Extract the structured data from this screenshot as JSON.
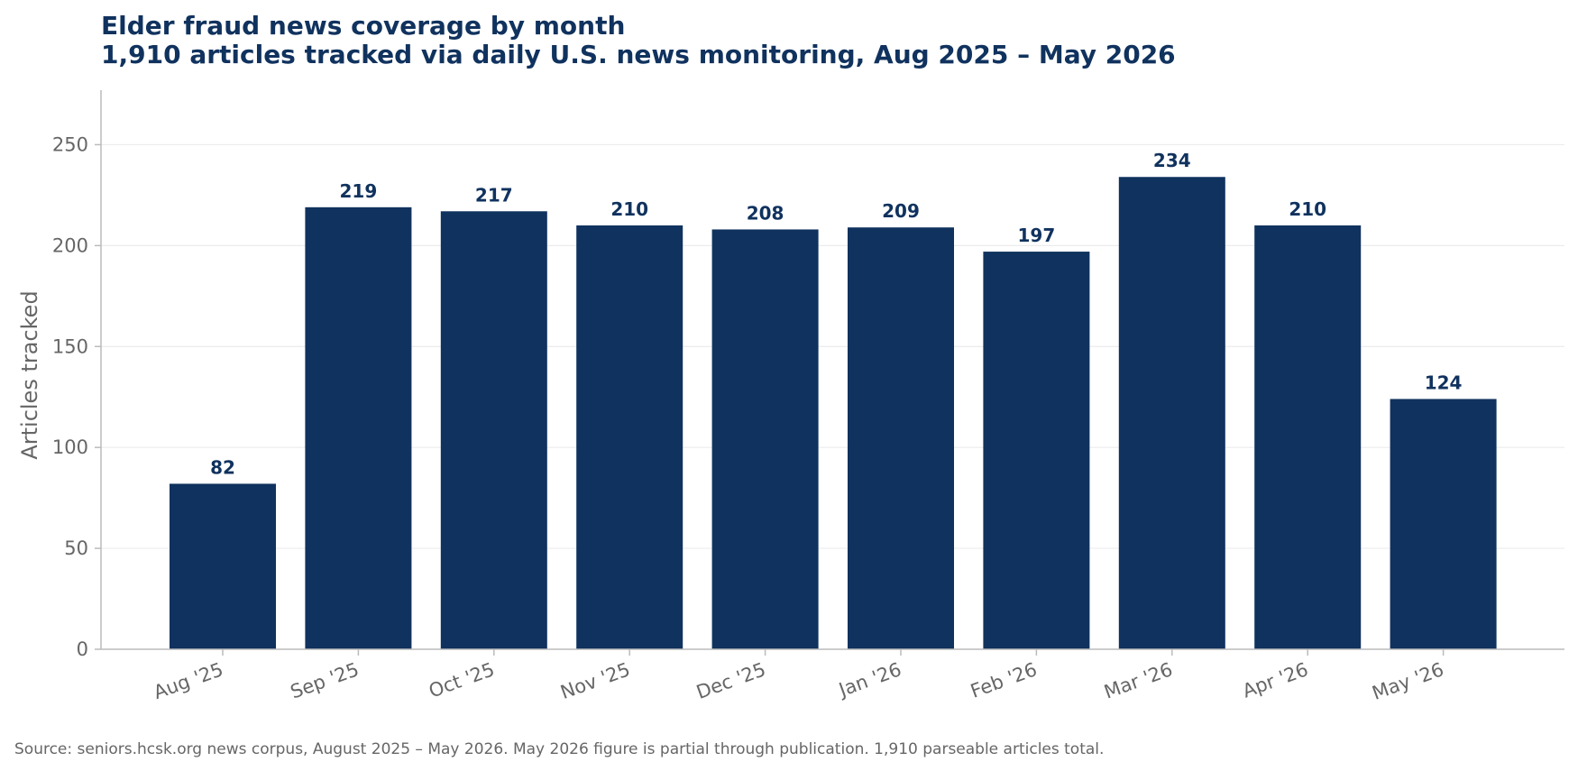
{
  "chart_data": {
    "type": "bar",
    "title": "Elder fraud news coverage by month",
    "subtitle": "1,910 articles tracked via daily U.S. news monitoring, Aug 2025 – May 2026",
    "xlabel": "",
    "ylabel": "Articles tracked",
    "categories": [
      "Aug '25",
      "Sep '25",
      "Oct '25",
      "Nov '25",
      "Dec '25",
      "Jan '26",
      "Feb '26",
      "Mar '26",
      "Apr '26",
      "May '26"
    ],
    "values": [
      82,
      219,
      217,
      210,
      208,
      209,
      197,
      234,
      210,
      124
    ],
    "data_labels": [
      "82",
      "219",
      "217",
      "210",
      "208",
      "209",
      "197",
      "234",
      "210",
      "124"
    ],
    "ylim": [
      0,
      277
    ],
    "yticks": [
      0,
      50,
      100,
      150,
      200,
      250
    ],
    "ytick_labels": [
      "0",
      "50",
      "100",
      "150",
      "200",
      "250"
    ],
    "grid": "horizontal",
    "legend": "none",
    "source": "Source: seniors.hcsk.org news corpus, August 2025 – May 2026. May 2026 figure is partial through publication. 1,910 parseable articles total.",
    "colors": {
      "bar": "#10325e",
      "title": "#10325e",
      "value_label": "#10325e",
      "tick_text": "#666666",
      "axis_line": "#bbbbbb",
      "grid": "#ececec",
      "source_text": "#666666"
    }
  }
}
